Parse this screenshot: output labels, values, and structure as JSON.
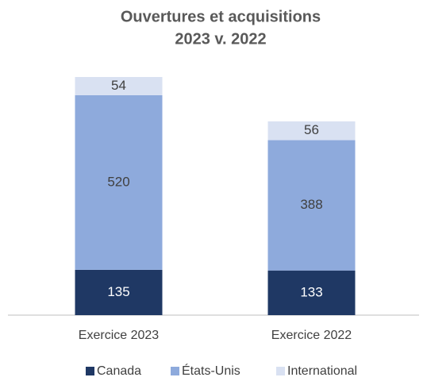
{
  "chart_data": {
    "type": "stacked-bar",
    "title": "Ouvertures et acquisitions",
    "subtitle": "2023 v. 2022",
    "categories": [
      "Exercice 2023",
      "Exercice 2022"
    ],
    "series": [
      {
        "name": "Canada",
        "color": "#1f3864",
        "values": [
          135,
          133
        ]
      },
      {
        "name": "États-Unis",
        "color": "#8eaadc",
        "values": [
          520,
          388
        ]
      },
      {
        "name": "International",
        "color": "#d9e1f2",
        "values": [
          54,
          56
        ]
      }
    ],
    "legend": "bottom"
  }
}
